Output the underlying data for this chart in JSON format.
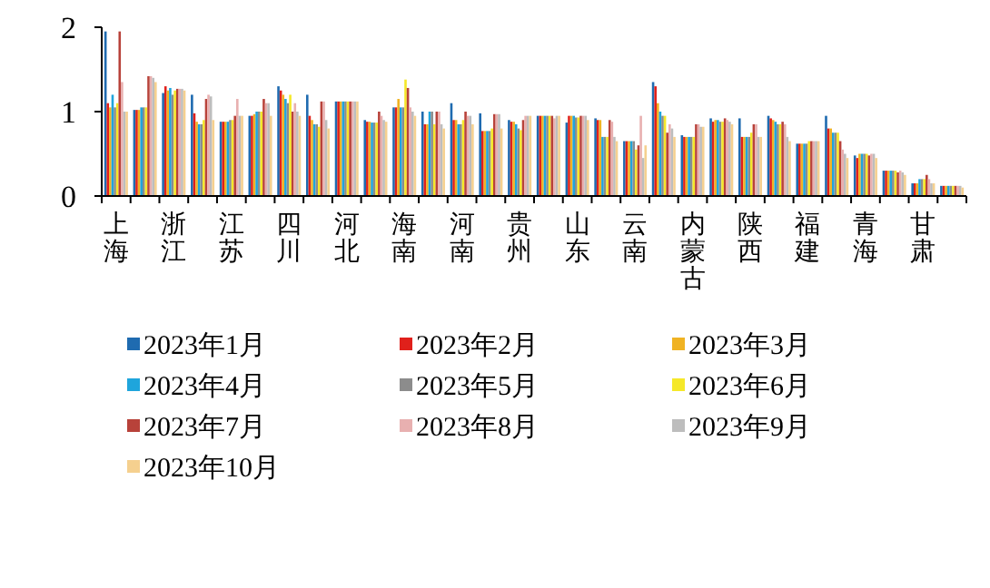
{
  "chart_data": {
    "type": "bar",
    "categories": [
      "上海",
      null,
      "浙江",
      null,
      "江苏",
      null,
      "四川",
      null,
      "河北",
      null,
      "海南",
      null,
      "河南",
      null,
      "贵州",
      null,
      "山东",
      null,
      "云南",
      null,
      "内蒙古",
      null,
      "陕西",
      null,
      "福建",
      null,
      "青海",
      null,
      "甘肃",
      null
    ],
    "ylim": [
      0,
      2
    ],
    "yticks": [
      0,
      1,
      2
    ],
    "legend": "bottom",
    "series": [
      {
        "name": "2023年1月",
        "color": "#1f6bb0",
        "values": [
          1.95,
          1.02,
          1.22,
          1.2,
          0.88,
          0.95,
          1.3,
          1.2,
          1.12,
          0.9,
          1.05,
          1.0,
          1.1,
          0.98,
          0.9,
          0.95,
          0.87,
          0.92,
          0.65,
          1.35,
          0.72,
          0.92,
          0.92,
          0.95,
          0.62,
          0.95,
          0.48,
          0.3,
          0.15,
          0.12
        ]
      },
      {
        "name": "2023年2月",
        "color": "#e0201b",
        "values": [
          1.1,
          1.02,
          1.3,
          0.98,
          0.88,
          0.95,
          1.25,
          0.95,
          1.12,
          0.88,
          1.05,
          0.85,
          0.9,
          0.77,
          0.88,
          0.95,
          0.95,
          0.9,
          0.65,
          1.3,
          0.7,
          0.88,
          0.7,
          0.92,
          0.62,
          0.8,
          0.45,
          0.3,
          0.15,
          0.12
        ]
      },
      {
        "name": "2023年3月",
        "color": "#f0b323",
        "values": [
          1.05,
          1.02,
          1.25,
          0.88,
          0.88,
          0.97,
          1.2,
          0.9,
          1.12,
          0.88,
          1.15,
          0.85,
          0.9,
          0.77,
          0.88,
          0.95,
          0.95,
          0.9,
          0.65,
          1.1,
          0.7,
          0.9,
          0.7,
          0.9,
          0.62,
          0.8,
          0.5,
          0.3,
          0.15,
          0.12
        ]
      },
      {
        "name": "2023年4月",
        "color": "#1fa5dc",
        "values": [
          1.2,
          1.05,
          1.28,
          0.85,
          0.88,
          1.0,
          1.15,
          0.85,
          1.12,
          0.87,
          1.05,
          1.0,
          0.85,
          0.77,
          0.85,
          0.95,
          0.95,
          0.7,
          0.65,
          1.0,
          0.7,
          0.9,
          0.7,
          0.88,
          0.62,
          0.75,
          0.5,
          0.3,
          0.2,
          0.12
        ]
      },
      {
        "name": "2023年5月",
        "color": "#8c8c8c",
        "values": [
          1.05,
          1.05,
          1.2,
          0.85,
          0.9,
          1.0,
          1.1,
          0.85,
          1.12,
          0.87,
          1.05,
          1.0,
          0.85,
          0.77,
          0.8,
          0.95,
          0.93,
          0.7,
          0.65,
          0.95,
          0.7,
          0.88,
          0.7,
          0.85,
          0.62,
          0.75,
          0.5,
          0.3,
          0.2,
          0.12
        ]
      },
      {
        "name": "2023年6月",
        "color": "#f5e829",
        "values": [
          1.1,
          1.05,
          1.25,
          0.9,
          0.9,
          1.0,
          1.2,
          0.82,
          1.12,
          0.87,
          1.38,
          0.85,
          0.9,
          0.8,
          0.78,
          0.95,
          0.93,
          0.7,
          0.55,
          0.95,
          0.7,
          0.88,
          0.75,
          0.85,
          0.65,
          0.75,
          0.5,
          0.3,
          0.2,
          0.12
        ]
      },
      {
        "name": "2023年7月",
        "color": "#b8423a",
        "values": [
          1.95,
          1.42,
          1.27,
          1.15,
          0.95,
          1.15,
          1.0,
          1.12,
          1.12,
          1.0,
          1.28,
          1.0,
          1.0,
          0.97,
          0.9,
          0.95,
          0.95,
          0.9,
          0.6,
          0.75,
          0.85,
          0.92,
          0.85,
          0.88,
          0.65,
          0.65,
          0.48,
          0.28,
          0.25,
          0.12
        ]
      },
      {
        "name": "2023年8月",
        "color": "#e8b0b0",
        "values": [
          1.35,
          1.42,
          1.27,
          1.2,
          1.15,
          1.1,
          1.1,
          1.12,
          1.12,
          0.95,
          1.05,
          1.0,
          0.95,
          0.97,
          0.95,
          0.92,
          0.95,
          0.88,
          0.95,
          0.85,
          0.85,
          0.9,
          0.85,
          0.85,
          0.65,
          0.55,
          0.5,
          0.3,
          0.2,
          0.12
        ]
      },
      {
        "name": "2023年9月",
        "color": "#bdbdbd",
        "values": [
          1.0,
          1.4,
          1.27,
          1.18,
          0.95,
          1.1,
          1.0,
          0.9,
          1.12,
          0.9,
          1.0,
          0.85,
          0.95,
          0.97,
          0.95,
          0.95,
          0.95,
          0.7,
          0.45,
          0.8,
          0.82,
          0.88,
          0.7,
          0.7,
          0.65,
          0.5,
          0.5,
          0.28,
          0.15,
          0.12
        ]
      },
      {
        "name": "2023年10月",
        "color": "#f5d08f",
        "values": [
          1.0,
          1.35,
          1.25,
          0.9,
          0.95,
          0.95,
          0.95,
          0.8,
          1.12,
          0.88,
          0.95,
          0.8,
          0.85,
          0.8,
          0.95,
          0.95,
          0.9,
          0.65,
          0.6,
          0.7,
          0.82,
          0.85,
          0.7,
          0.65,
          0.65,
          0.45,
          0.45,
          0.25,
          0.15,
          0.1
        ]
      }
    ]
  }
}
